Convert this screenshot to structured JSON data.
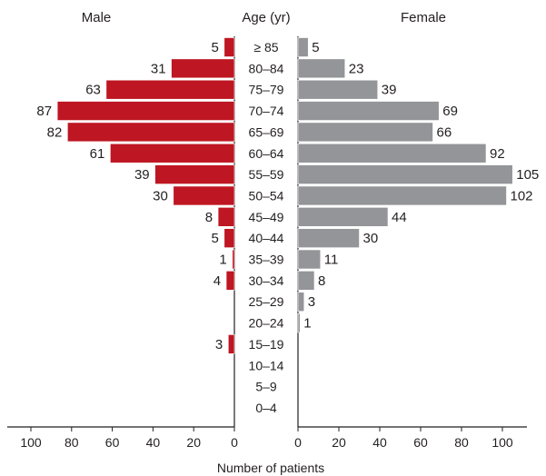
{
  "chart_data": {
    "type": "bar",
    "orientation": "horizontal",
    "layout": "population-pyramid",
    "headers": {
      "left": "Male",
      "center": "Age (yr)",
      "right": "Female"
    },
    "xlabel": "Number of patients",
    "categories": [
      "≥ 85",
      "80–84",
      "75–79",
      "70–74",
      "65–69",
      "60–64",
      "55–59",
      "50–54",
      "45–49",
      "40–44",
      "35–39",
      "30–34",
      "25–29",
      "20–24",
      "15–19",
      "10–14",
      "5–9",
      "0–4"
    ],
    "series": [
      {
        "name": "Male",
        "color": "#be1622",
        "values": [
          5,
          31,
          63,
          87,
          82,
          61,
          39,
          30,
          8,
          5,
          1,
          4,
          null,
          null,
          3,
          null,
          null,
          null
        ]
      },
      {
        "name": "Female",
        "color": "#939598",
        "values": [
          5,
          23,
          39,
          69,
          66,
          92,
          105,
          102,
          44,
          30,
          11,
          8,
          3,
          1,
          null,
          null,
          null,
          null
        ]
      }
    ],
    "male_axis": {
      "ticks": [
        "100",
        "80",
        "60",
        "40",
        "20",
        "0"
      ],
      "xlim": [
        0,
        100
      ],
      "reversed": true
    },
    "female_axis": {
      "ticks": [
        "0",
        "20",
        "40",
        "60",
        "80",
        "100"
      ],
      "xlim": [
        0,
        100
      ]
    },
    "grid": false,
    "legend": "none"
  }
}
